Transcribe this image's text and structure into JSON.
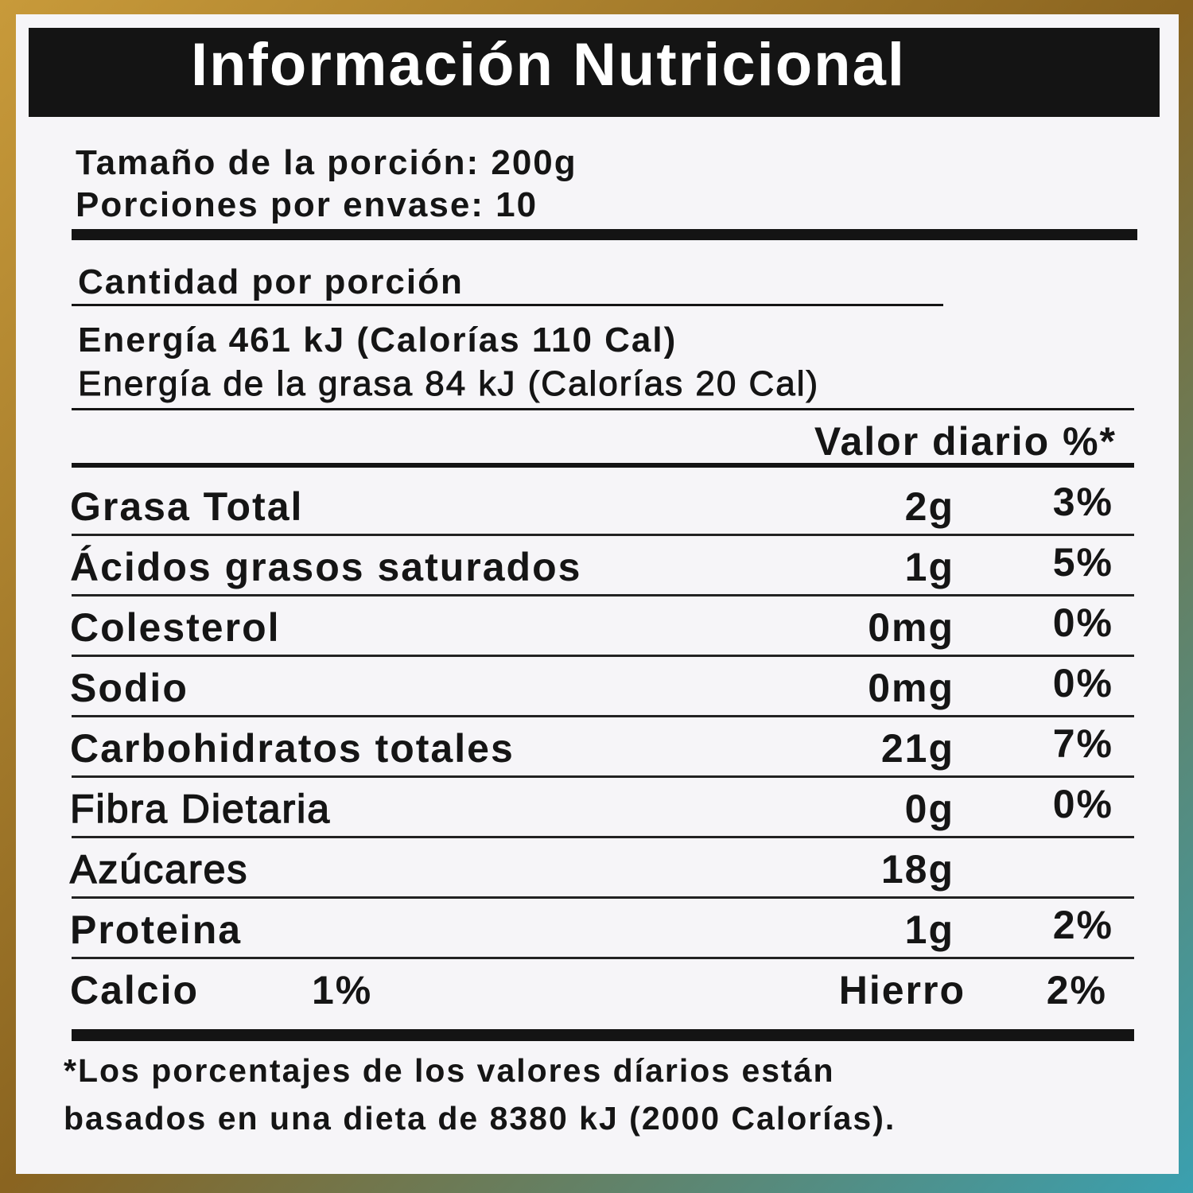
{
  "title": "Información Nutricional",
  "serving": [
    "Tamaño de la porción: 200g",
    "Porciones por envase: 10"
  ],
  "amount_per_serving": "Cantidad por porción",
  "energy": [
    "Energía 461 kJ (Calorías 110 Cal)",
    "Energía de la grasa 84 kJ (Calorías 20 Cal)"
  ],
  "daily_value_header": "Valor diario %*",
  "rows": [
    {
      "name": "Grasa Total",
      "amount": "2g",
      "percent": "3%"
    },
    {
      "name": "Ácidos grasos saturados",
      "amount": "1g",
      "percent": "5%"
    },
    {
      "name": "Colesterol",
      "amount": "0mg",
      "percent": "0%"
    },
    {
      "name": "Sodio",
      "amount": "0mg",
      "percent": "0%"
    },
    {
      "name": "Carbohidratos totales",
      "amount": "21g",
      "percent": "7%"
    },
    {
      "name": "Fibra Dietaria",
      "amount": "0g",
      "percent": "0%"
    },
    {
      "name": "Azúcares",
      "amount": "18g"
    },
    {
      "name": "Proteina",
      "amount": "1g",
      "percent": "2%"
    }
  ],
  "minerals": [
    {
      "name": "Calcio",
      "percent": "1%"
    },
    {
      "name": "Hierro",
      "percent": "2%"
    }
  ],
  "footnote": [
    "*Los porcentajes de los valores díarios están",
    "basados en una dieta de 8380 kJ (2000 Calorías)."
  ]
}
